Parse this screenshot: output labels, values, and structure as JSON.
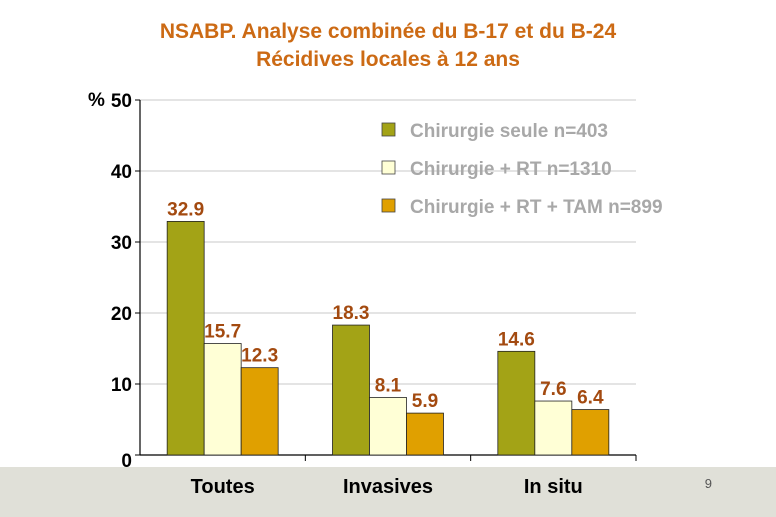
{
  "title_line1": "NSABP. Analyse combinée du B-17 et du B-24",
  "title_line2": "Récidives locales à 12 ans",
  "slide_number": "9",
  "chart_data": {
    "type": "bar",
    "categories": [
      "Toutes",
      "Invasives",
      "In situ"
    ],
    "ylabel": "%",
    "ylim": [
      0,
      50
    ],
    "yticks": [
      0,
      10,
      20,
      30,
      40,
      50
    ],
    "grid": true,
    "legend_position": "top-right",
    "series": [
      {
        "name": "Chirurgie seule n=403",
        "color": "#a3a316",
        "values": [
          32.9,
          18.3,
          14.6
        ]
      },
      {
        "name": "Chirurgie + RT n=1310",
        "color": "#ffffd6",
        "values": [
          15.7,
          8.1,
          7.6
        ]
      },
      {
        "name": "Chirurgie + RT + TAM n=899",
        "color": "#e0a000",
        "values": [
          12.3,
          5.9,
          6.4
        ]
      }
    ],
    "data_labels": [
      [
        "32.9",
        "18.3",
        "14.6"
      ],
      [
        "15.7",
        "8.1",
        "7.6"
      ],
      [
        "12.3",
        "5.9",
        "6.4"
      ]
    ]
  }
}
